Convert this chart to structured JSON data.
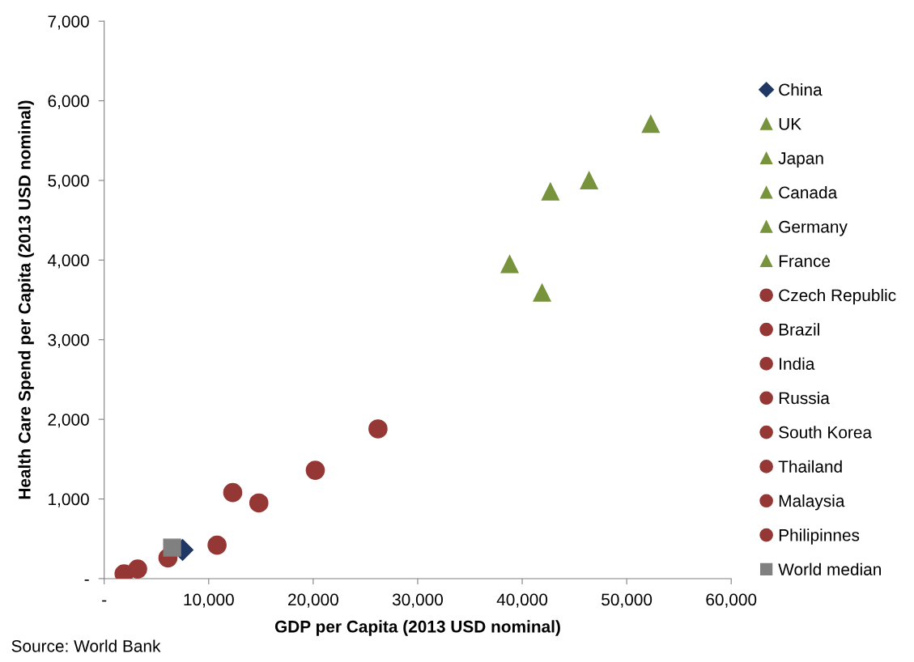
{
  "chart_data": {
    "type": "scatter",
    "xlabel": "GDP per Capita (2013 USD nominal)",
    "ylabel": "Health Care Spend per Capita (2013 USD nominal)",
    "xlim": [
      0,
      60000
    ],
    "ylim": [
      0,
      7000
    ],
    "xticks": [
      {
        "value": 0,
        "label": "-"
      },
      {
        "value": 10000,
        "label": "10,000"
      },
      {
        "value": 20000,
        "label": "20,000"
      },
      {
        "value": 30000,
        "label": "30,000"
      },
      {
        "value": 40000,
        "label": "40,000"
      },
      {
        "value": 50000,
        "label": "50,000"
      },
      {
        "value": 60000,
        "label": "60,000"
      }
    ],
    "yticks": [
      {
        "value": 0,
        "label": "-"
      },
      {
        "value": 1000,
        "label": "1,000"
      },
      {
        "value": 2000,
        "label": "2,000"
      },
      {
        "value": 3000,
        "label": "3,000"
      },
      {
        "value": 4000,
        "label": "4,000"
      },
      {
        "value": 5000,
        "label": "5,000"
      },
      {
        "value": 6000,
        "label": "6,000"
      },
      {
        "value": 7000,
        "label": "7,000"
      }
    ],
    "grid": false,
    "legend": "right",
    "annotations": [
      "Source: World Bank"
    ],
    "series": [
      {
        "name": "China",
        "color": "#1f3864",
        "marker": "diamond",
        "x": [
          7500
        ],
        "values": [
          360
        ]
      },
      {
        "name": "UK",
        "color": "#77933c",
        "marker": "triangle",
        "x": [
          41900
        ],
        "values": [
          3590
        ]
      },
      {
        "name": "Japan",
        "color": "#77933c",
        "marker": "triangle",
        "x": [
          38800
        ],
        "values": [
          3950
        ]
      },
      {
        "name": "Canada",
        "color": "#77933c",
        "marker": "triangle",
        "x": [
          52300
        ],
        "values": [
          5710
        ]
      },
      {
        "name": "Germany",
        "color": "#77933c",
        "marker": "triangle",
        "x": [
          46400
        ],
        "values": [
          5000
        ]
      },
      {
        "name": "France",
        "color": "#77933c",
        "marker": "triangle",
        "x": [
          42700
        ],
        "values": [
          4860
        ]
      },
      {
        "name": "Czech Republic",
        "color": "#953735",
        "marker": "circle",
        "x": [
          20200
        ],
        "values": [
          1360
        ]
      },
      {
        "name": "Brazil",
        "color": "#953735",
        "marker": "circle",
        "x": [
          12300
        ],
        "values": [
          1080
        ]
      },
      {
        "name": "India",
        "color": "#953735",
        "marker": "circle",
        "x": [
          1900
        ],
        "values": [
          60
        ]
      },
      {
        "name": "Russia",
        "color": "#953735",
        "marker": "circle",
        "x": [
          14800
        ],
        "values": [
          950
        ]
      },
      {
        "name": "South Korea",
        "color": "#953735",
        "marker": "circle",
        "x": [
          26200
        ],
        "values": [
          1880
        ]
      },
      {
        "name": "Thailand",
        "color": "#953735",
        "marker": "circle",
        "x": [
          6100
        ],
        "values": [
          260
        ]
      },
      {
        "name": "Malaysia",
        "color": "#953735",
        "marker": "circle",
        "x": [
          10800
        ],
        "values": [
          420
        ]
      },
      {
        "name": "Philipinnes",
        "color": "#953735",
        "marker": "circle",
        "x": [
          3200
        ],
        "values": [
          120
        ]
      },
      {
        "name": "World median",
        "color": "#808080",
        "marker": "square",
        "x": [
          6500
        ],
        "values": [
          390
        ]
      }
    ]
  }
}
